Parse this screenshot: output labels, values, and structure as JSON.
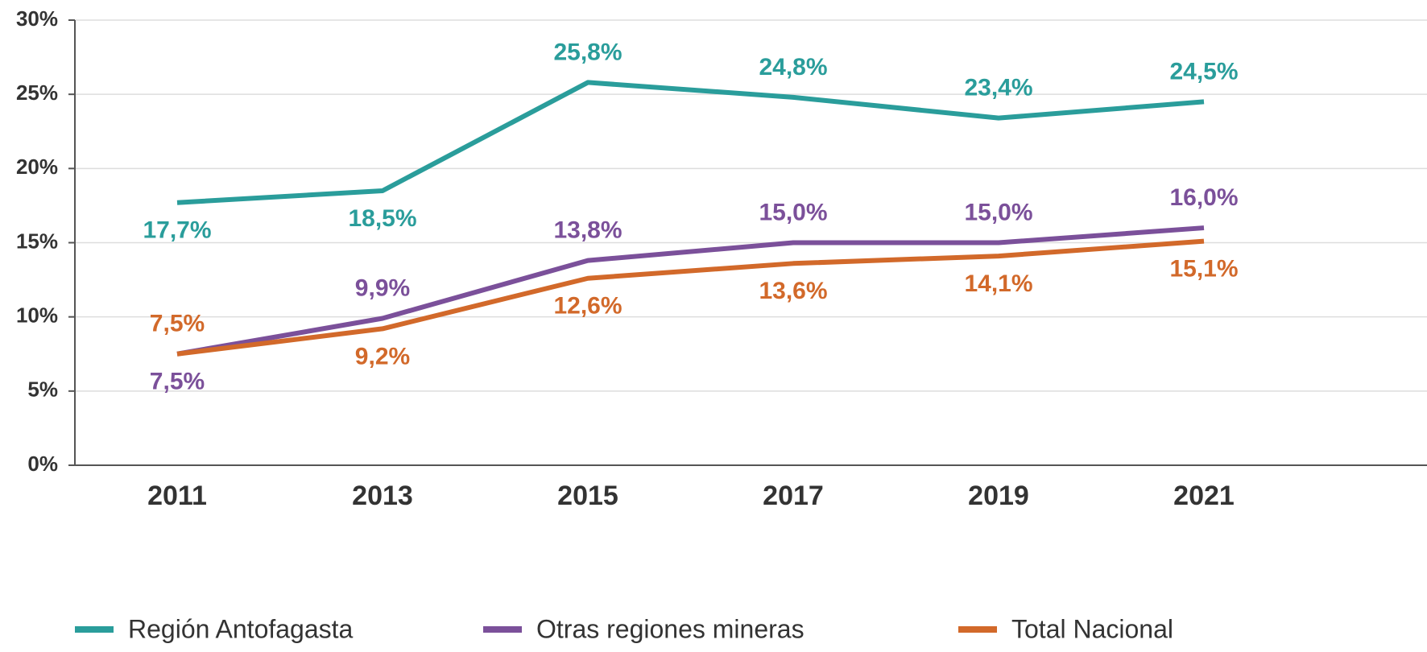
{
  "chart_data": {
    "type": "line",
    "categories": [
      "2011",
      "2013",
      "2015",
      "2017",
      "2019",
      "2021"
    ],
    "series": [
      {
        "name": "Región Antofagasta",
        "color": "#2a9d9b",
        "values": [
          17.7,
          18.5,
          25.8,
          24.8,
          23.4,
          24.5
        ],
        "value_labels": [
          "17,7%",
          "18,5%",
          "25,8%",
          "24,8%",
          "23,4%",
          "24,5%"
        ]
      },
      {
        "name": "Otras regiones mineras",
        "color": "#7b509a",
        "values": [
          7.5,
          9.9,
          13.8,
          15.0,
          15.0,
          16.0
        ],
        "value_labels": [
          "7,5%",
          "9,9%",
          "13,8%",
          "15,0%",
          "15,0%",
          "16,0%"
        ]
      },
      {
        "name": "Total Nacional",
        "color": "#d2692a",
        "values": [
          7.5,
          9.2,
          12.6,
          13.6,
          14.1,
          15.1
        ],
        "value_labels": [
          "7,5%",
          "9,2%",
          "12,6%",
          "13,6%",
          "14,1%",
          "15,1%"
        ]
      }
    ],
    "ylim": [
      0,
      30
    ],
    "yticks": [
      {
        "value": 0,
        "label": "0%"
      },
      {
        "value": 5,
        "label": "5%"
      },
      {
        "value": 10,
        "label": "10%"
      },
      {
        "value": 15,
        "label": "15%"
      },
      {
        "value": 20,
        "label": "20%"
      },
      {
        "value": 25,
        "label": "25%"
      },
      {
        "value": 30,
        "label": "30%"
      }
    ],
    "grid": true,
    "legend": "bottom"
  }
}
